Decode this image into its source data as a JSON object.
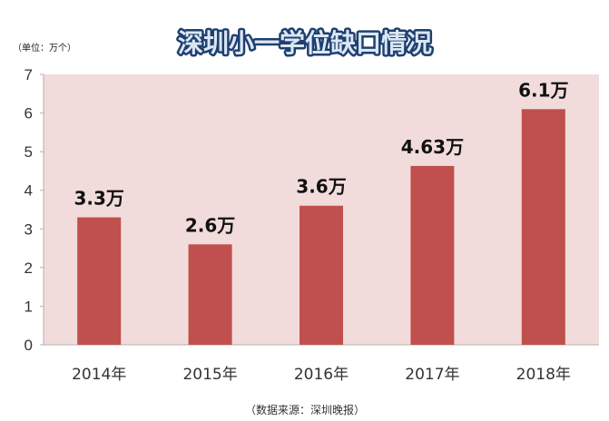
{
  "chart_data": {
    "type": "bar",
    "title": "深圳小一学位缺口情况",
    "unit_label": "（单位：万个）",
    "source": "（数据来源：深圳晚报）",
    "categories": [
      "2014年",
      "2015年",
      "2016年",
      "2017年",
      "2018年"
    ],
    "values": [
      3.3,
      2.6,
      3.6,
      4.63,
      6.1
    ],
    "data_labels": [
      "3.3万",
      "2.6万",
      "3.6万",
      "4.63万",
      "6.1万"
    ],
    "yticks": [
      "0",
      "1",
      "2",
      "3",
      "4",
      "5",
      "6",
      "7"
    ],
    "ylim": [
      0,
      7
    ],
    "grid": false,
    "colors": {
      "bar": "#c0504d",
      "plot_bg": "#f2dcdb",
      "title_fill": "#dbe7f5",
      "title_stroke": "#1f3f6e"
    }
  }
}
